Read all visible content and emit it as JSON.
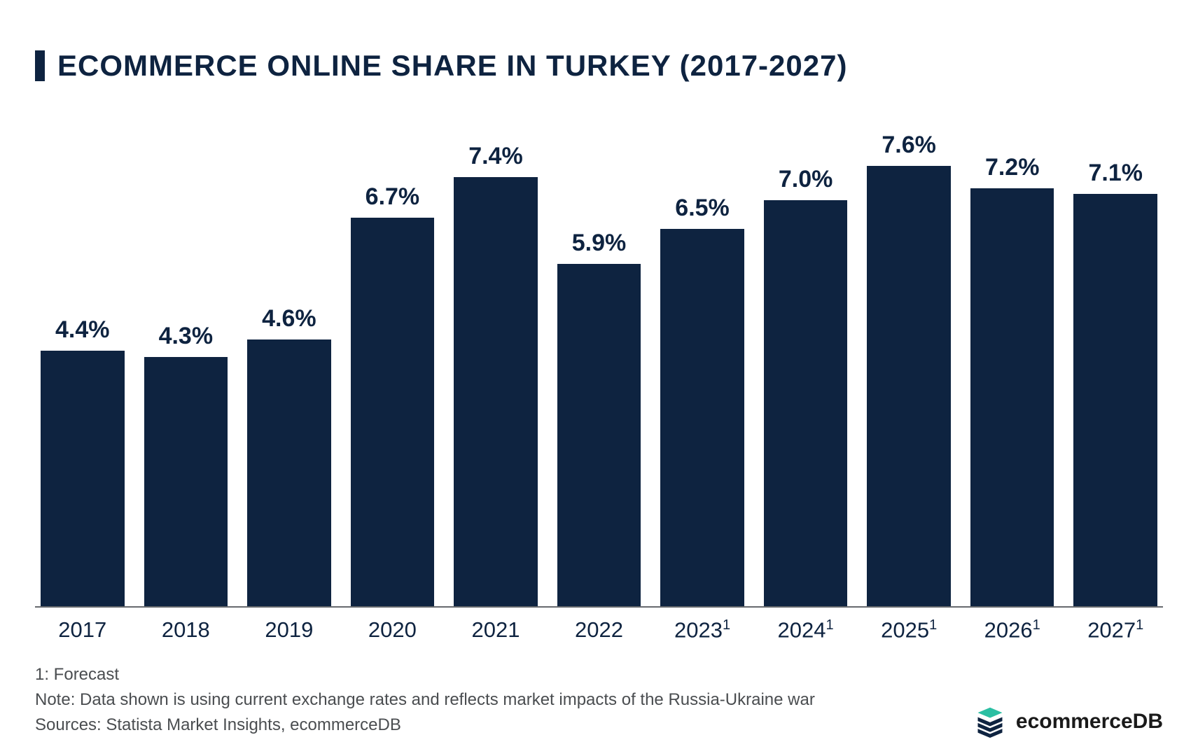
{
  "title": "ECOMMERCE ONLINE SHARE IN TURKEY (2017-2027)",
  "chart": {
    "type": "bar",
    "ymax": 7.6,
    "bar_color": "#0e2340",
    "text_color": "#0e2340",
    "axis_color": "#676a6e",
    "footnote_color": "#4a4d50",
    "background_color": "#ffffff",
    "value_label_fontsize": 34,
    "x_label_fontsize": 31,
    "title_fontsize": 42,
    "bars": [
      {
        "category": "2017",
        "note": "",
        "value": 4.4,
        "label": "4.4%"
      },
      {
        "category": "2018",
        "note": "",
        "value": 4.3,
        "label": "4.3%"
      },
      {
        "category": "2019",
        "note": "",
        "value": 4.6,
        "label": "4.6%"
      },
      {
        "category": "2020",
        "note": "",
        "value": 6.7,
        "label": "6.7%"
      },
      {
        "category": "2021",
        "note": "",
        "value": 7.4,
        "label": "7.4%"
      },
      {
        "category": "2022",
        "note": "",
        "value": 5.9,
        "label": "5.9%"
      },
      {
        "category": "2023",
        "note": "1",
        "value": 6.5,
        "label": "6.5%"
      },
      {
        "category": "2024",
        "note": "1",
        "value": 7.0,
        "label": "7.0%"
      },
      {
        "category": "2025",
        "note": "1",
        "value": 7.6,
        "label": "7.6%"
      },
      {
        "category": "2026",
        "note": "1",
        "value": 7.2,
        "label": "7.2%"
      },
      {
        "category": "2027",
        "note": "1",
        "value": 7.1,
        "label": "7.1%"
      }
    ]
  },
  "footnotes": {
    "line1": "1: Forecast",
    "line2": "Note: Data shown is using current exchange rates and reflects market impacts of the Russia-Ukraine war",
    "line3": "Sources: Statista Market Insights, ecommerceDB"
  },
  "brand": {
    "name": "ecommerceDB",
    "icon_top_color": "#2bbfa3",
    "icon_body_color": "#0e2340"
  }
}
